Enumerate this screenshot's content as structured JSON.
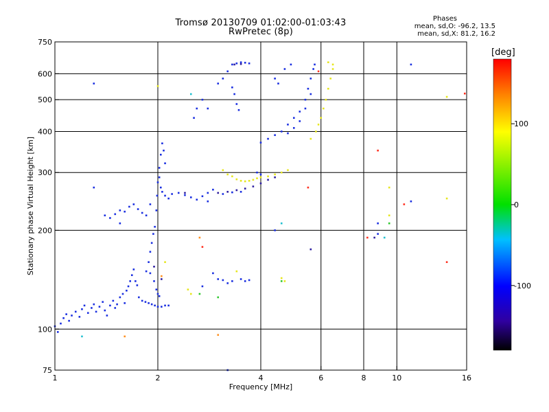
{
  "chart_data": {
    "type": "scatter",
    "title": "Tromsø 20130709 01:02:00-01:03:43",
    "subtitle": "RwPretec (8p)",
    "xlabel": "Frequency [MHz]",
    "ylabel": "Stationary phase Virtual Height [km]",
    "xscale": "log",
    "yscale": "log",
    "xlim": [
      1,
      16
    ],
    "ylim": [
      75,
      750
    ],
    "xticks": [
      1,
      2,
      4,
      6,
      8,
      10,
      16
    ],
    "yticks": [
      75,
      100,
      200,
      300,
      400,
      500,
      600,
      750
    ],
    "xgrid": [
      2,
      4,
      6,
      8,
      10
    ],
    "ygrid": [
      100,
      200,
      300,
      400,
      500,
      600
    ],
    "stats": {
      "heading": "Phases",
      "o_line": "mean, sd,O: -96.2, 13.5",
      "x_line": "mean, sd,X:  81.2, 16.2"
    },
    "colorbar": {
      "label": "[deg]",
      "ticks": [
        100,
        0,
        -100
      ],
      "range": [
        -180,
        180
      ]
    },
    "series": [
      {
        "color": "#1a2fe0",
        "points": [
          [
            1.0,
            102
          ],
          [
            1.02,
            98
          ],
          [
            1.04,
            104
          ],
          [
            1.06,
            108
          ],
          [
            1.08,
            111
          ],
          [
            1.1,
            106
          ],
          [
            1.12,
            110
          ],
          [
            1.15,
            113
          ],
          [
            1.18,
            109
          ],
          [
            1.2,
            115
          ],
          [
            1.22,
            118
          ],
          [
            1.25,
            112
          ],
          [
            1.28,
            116
          ],
          [
            1.3,
            119
          ],
          [
            1.32,
            113
          ],
          [
            1.35,
            117
          ],
          [
            1.38,
            121
          ],
          [
            1.4,
            114
          ],
          [
            1.42,
            110
          ],
          [
            1.45,
            118
          ],
          [
            1.48,
            122
          ],
          [
            1.5,
            116
          ],
          [
            1.52,
            119
          ],
          [
            1.55,
            125
          ],
          [
            1.58,
            128
          ],
          [
            1.6,
            120
          ],
          [
            1.62,
            131
          ],
          [
            1.64,
            135
          ],
          [
            1.66,
            140
          ],
          [
            1.68,
            146
          ],
          [
            1.7,
            152
          ],
          [
            1.72,
            140
          ],
          [
            1.74,
            136
          ],
          [
            1.76,
            125
          ],
          [
            1.8,
            122
          ],
          [
            1.84,
            121
          ],
          [
            1.88,
            120
          ],
          [
            1.92,
            119
          ],
          [
            1.96,
            118
          ],
          [
            2.0,
            117
          ],
          [
            2.05,
            117
          ],
          [
            2.1,
            118
          ],
          [
            2.15,
            118
          ],
          [
            1.85,
            150
          ],
          [
            1.88,
            160
          ],
          [
            1.9,
            172
          ],
          [
            1.92,
            183
          ],
          [
            1.94,
            195
          ],
          [
            1.96,
            205
          ],
          [
            1.98,
            230
          ],
          [
            1.99,
            255
          ],
          [
            2.0,
            280
          ],
          [
            2.02,
            310
          ],
          [
            2.04,
            340
          ],
          [
            2.06,
            368
          ],
          [
            2.08,
            350
          ],
          [
            2.1,
            320
          ],
          [
            2.02,
            290
          ],
          [
            2.04,
            270
          ],
          [
            2.06,
            262
          ],
          [
            2.1,
            255
          ],
          [
            2.15,
            250
          ],
          [
            2.2,
            258
          ],
          [
            2.3,
            260
          ],
          [
            2.4,
            256
          ],
          [
            2.5,
            252
          ],
          [
            2.6,
            248
          ],
          [
            2.7,
            254
          ],
          [
            2.8,
            260
          ],
          [
            2.9,
            266
          ],
          [
            1.9,
            148
          ],
          [
            1.95,
            140
          ],
          [
            1.98,
            132
          ],
          [
            2.0,
            128
          ],
          [
            2.02,
            126
          ],
          [
            1.4,
            222
          ],
          [
            1.45,
            218
          ],
          [
            1.5,
            224
          ],
          [
            1.55,
            230
          ],
          [
            1.6,
            228
          ],
          [
            1.65,
            236
          ],
          [
            1.7,
            240
          ],
          [
            1.75,
            232
          ],
          [
            1.8,
            226
          ],
          [
            1.85,
            222
          ],
          [
            1.9,
            240
          ],
          [
            2.55,
            440
          ],
          [
            2.6,
            470
          ],
          [
            2.7,
            500
          ],
          [
            2.8,
            470
          ],
          [
            3.0,
            560
          ],
          [
            3.1,
            580
          ],
          [
            3.2,
            610
          ],
          [
            3.3,
            640
          ],
          [
            3.4,
            645
          ],
          [
            3.5,
            650
          ],
          [
            3.6,
            648
          ],
          [
            3.7,
            645
          ],
          [
            3.3,
            545
          ],
          [
            3.35,
            520
          ],
          [
            3.4,
            485
          ],
          [
            3.45,
            465
          ],
          [
            2.9,
            148
          ],
          [
            3.0,
            142
          ],
          [
            3.1,
            141
          ],
          [
            3.2,
            138
          ],
          [
            3.3,
            140
          ],
          [
            3.5,
            142
          ],
          [
            3.6,
            140
          ],
          [
            3.7,
            141
          ],
          [
            4.0,
            370
          ],
          [
            4.2,
            380
          ],
          [
            4.4,
            390
          ],
          [
            4.6,
            400
          ],
          [
            4.8,
            420
          ],
          [
            5.0,
            440
          ],
          [
            5.2,
            460
          ],
          [
            5.4,
            500
          ],
          [
            5.5,
            540
          ],
          [
            5.6,
            580
          ],
          [
            5.7,
            620
          ],
          [
            5.75,
            640
          ],
          [
            5.6,
            520
          ],
          [
            5.4,
            470
          ],
          [
            5.2,
            430
          ],
          [
            5.0,
            410
          ],
          [
            4.8,
            395
          ],
          [
            4.4,
            580
          ],
          [
            4.5,
            560
          ],
          [
            4.7,
            620
          ],
          [
            4.9,
            640
          ],
          [
            3.9,
            300
          ],
          [
            4.0,
            296
          ],
          [
            1.3,
            560
          ],
          [
            1.3,
            270
          ],
          [
            1.55,
            210
          ],
          [
            2.8,
            245
          ],
          [
            3.5,
            262
          ],
          [
            3.3,
            261
          ],
          [
            3.1,
            258
          ],
          [
            11.0,
            640
          ],
          [
            8.8,
            210
          ],
          [
            8.8,
            195
          ],
          [
            11.0,
            245
          ],
          [
            3.2,
            75
          ],
          [
            2.7,
            135
          ],
          [
            4.4,
            200
          ]
        ]
      },
      {
        "color": "#e6e61e",
        "points": [
          [
            3.1,
            305
          ],
          [
            3.2,
            296
          ],
          [
            3.3,
            292
          ],
          [
            3.4,
            286
          ],
          [
            3.5,
            283
          ],
          [
            3.6,
            282
          ],
          [
            3.7,
            283
          ],
          [
            3.8,
            285
          ],
          [
            3.9,
            288
          ],
          [
            4.0,
            290
          ],
          [
            4.2,
            292
          ],
          [
            4.4,
            296
          ],
          [
            4.6,
            300
          ],
          [
            4.8,
            305
          ],
          [
            5.6,
            380
          ],
          [
            5.8,
            400
          ],
          [
            5.9,
            420
          ],
          [
            6.0,
            440
          ],
          [
            6.1,
            470
          ],
          [
            6.2,
            500
          ],
          [
            6.3,
            540
          ],
          [
            6.4,
            580
          ],
          [
            6.5,
            620
          ],
          [
            6.3,
            650
          ],
          [
            4.6,
            143
          ],
          [
            4.7,
            140
          ],
          [
            2.45,
            132
          ],
          [
            2.5,
            128
          ],
          [
            3.4,
            150
          ],
          [
            9.5,
            270
          ],
          [
            9.5,
            222
          ],
          [
            14.0,
            250
          ],
          [
            14.0,
            510
          ],
          [
            2.1,
            160
          ],
          [
            2.0,
            550
          ],
          [
            6.5,
            640
          ]
        ]
      },
      {
        "color": "#2e1fa0",
        "points": [
          [
            3.0,
            260
          ],
          [
            3.2,
            262
          ],
          [
            3.4,
            265
          ],
          [
            3.6,
            268
          ],
          [
            3.8,
            272
          ],
          [
            4.0,
            278
          ],
          [
            4.2,
            285
          ],
          [
            4.4,
            290
          ],
          [
            3.35,
            640
          ],
          [
            3.5,
            642
          ],
          [
            1.95,
            155
          ],
          [
            2.05,
            142
          ],
          [
            2.4,
            260
          ],
          [
            5.6,
            175
          ],
          [
            8.6,
            190
          ]
        ]
      },
      {
        "color": "#ff3020",
        "points": [
          [
            8.2,
            190
          ],
          [
            5.9,
            610
          ],
          [
            5.5,
            270
          ],
          [
            8.8,
            350
          ],
          [
            10.5,
            240
          ],
          [
            14.0,
            160
          ],
          [
            15.8,
            522
          ],
          [
            2.7,
            178
          ]
        ]
      },
      {
        "color": "#20c0d0",
        "points": [
          [
            4.6,
            210
          ],
          [
            9.2,
            190
          ],
          [
            2.5,
            520
          ],
          [
            1.2,
            95
          ]
        ]
      },
      {
        "color": "#30c830",
        "points": [
          [
            4.6,
            140
          ],
          [
            2.65,
            128
          ],
          [
            9.5,
            210
          ],
          [
            3.0,
            125
          ]
        ]
      },
      {
        "color": "#ff9020",
        "points": [
          [
            2.65,
            190
          ],
          [
            3.0,
            96
          ],
          [
            1.6,
            95
          ],
          [
            2.05,
            145
          ]
        ]
      }
    ]
  }
}
